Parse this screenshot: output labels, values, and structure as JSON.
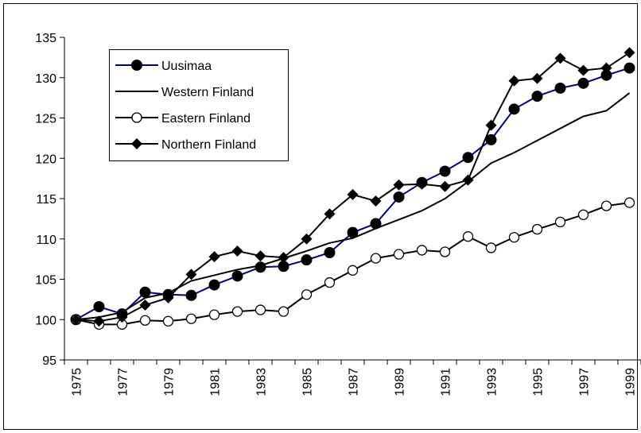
{
  "chart_data": {
    "type": "line",
    "categories": [
      "1975",
      null,
      "1977",
      null,
      "1979",
      null,
      "1981",
      null,
      "1983",
      null,
      "1985",
      null,
      "1987",
      null,
      "1989",
      null,
      "1991",
      null,
      "1993",
      null,
      "1995",
      null,
      "1997",
      null,
      "1999"
    ],
    "series": [
      {
        "name": "Uusimaa",
        "color": "#000080",
        "marker": "circle",
        "marker_color": "#000000",
        "values": [
          100,
          101.6,
          100.7,
          103.4,
          103.1,
          103.0,
          104.3,
          105.4,
          106.5,
          106.6,
          107.4,
          108.3,
          110.8,
          111.9,
          115.2,
          117.0,
          118.4,
          120.1,
          122.3,
          126.1,
          127.7,
          128.7,
          129.3,
          130.3,
          131.2
        ]
      },
      {
        "name": "Western Finland",
        "color": "#000000",
        "marker": "none",
        "values": [
          100,
          100.3,
          100.9,
          102.7,
          103.3,
          104.8,
          105.5,
          106.2,
          106.7,
          107.6,
          108.5,
          109.5,
          110.1,
          111.3,
          112.4,
          113.5,
          115.0,
          117.1,
          119.4,
          120.7,
          122.2,
          123.7,
          125.2,
          125.9,
          128.1
        ]
      },
      {
        "name": "Eastern Finland",
        "color": "#000000",
        "marker": "open-circle",
        "values": [
          100,
          99.4,
          99.4,
          99.9,
          99.8,
          100.1,
          100.6,
          101.0,
          101.2,
          101.0,
          103.1,
          104.6,
          106.1,
          107.6,
          108.1,
          108.6,
          108.4,
          110.3,
          108.9,
          110.2,
          111.2,
          112.1,
          113.0,
          114.1,
          114.5
        ]
      },
      {
        "name": "Northern Finland",
        "color": "#000000",
        "marker": "diamond",
        "values": [
          100,
          99.8,
          100.3,
          101.8,
          102.7,
          105.6,
          107.8,
          108.5,
          107.9,
          107.7,
          110.0,
          113.1,
          115.5,
          114.7,
          116.7,
          116.8,
          116.5,
          117.3,
          124.1,
          129.6,
          129.9,
          132.4,
          130.9,
          131.2,
          133.1
        ]
      }
    ],
    "ylim": [
      95,
      135
    ],
    "yticks": [
      95,
      100,
      105,
      110,
      115,
      120,
      125,
      130,
      135
    ],
    "grid": false,
    "legend": "top-left"
  }
}
